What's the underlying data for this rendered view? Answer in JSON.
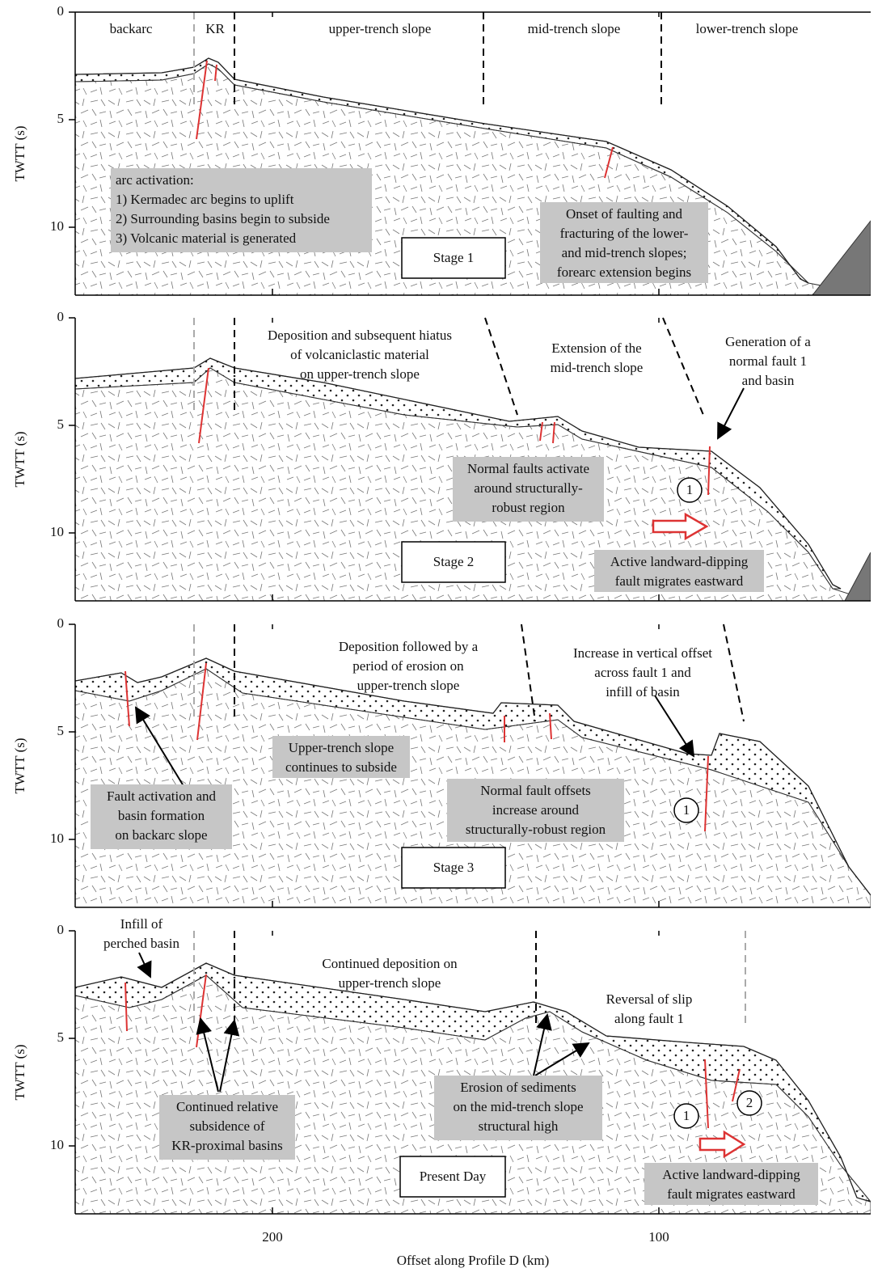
{
  "figure": {
    "y_axis_label": "TWTT (s)",
    "x_axis_label": "Offset along Profile D (km)",
    "x_ticks": [
      200,
      100
    ],
    "y_ticks": [
      0,
      5,
      10
    ],
    "panels": [
      {
        "zone_labels": [
          "backarc",
          "KR",
          "upper-trench slope",
          "mid-trench slope",
          "lower-trench slope"
        ],
        "stage": "Stage 1",
        "annotations": [
          {
            "lines": [
              "arc activation:",
              "1) Kermadec arc begins to uplift",
              "2) Surrounding basins begin to subside",
              "3) Volcanic material is generated"
            ]
          },
          {
            "lines": [
              "Onset of faulting and",
              "fracturing of the lower-",
              "and mid-trench slopes;",
              "forearc extension begins"
            ]
          }
        ],
        "markers": []
      },
      {
        "zone_labels": [],
        "stage": "Stage 2",
        "annotations": [
          {
            "lines": [
              "Deposition and subsequent hiatus",
              "of volcaniclastic material",
              "on upper-trench slope"
            ]
          },
          {
            "lines": [
              "Extension of the",
              "mid-trench slope"
            ]
          },
          {
            "lines": [
              "Generation of a",
              "normal fault 1",
              "and basin"
            ]
          },
          {
            "lines": [
              "Normal faults activate",
              "around structurally-",
              "robust region"
            ]
          },
          {
            "lines": [
              "Active landward-dipping",
              "fault migrates eastward"
            ]
          }
        ],
        "markers": [
          "1"
        ]
      },
      {
        "zone_labels": [],
        "stage": "Stage 3",
        "annotations": [
          {
            "lines": [
              "Deposition followed by a",
              "period of erosion on",
              "upper-trench slope"
            ]
          },
          {
            "lines": [
              "Increase in vertical offset",
              "across fault 1 and",
              "infill of basin"
            ]
          },
          {
            "lines": [
              "Upper-trench slope",
              "continues to subside"
            ]
          },
          {
            "lines": [
              "Fault activation and",
              "basin formation",
              "on backarc slope"
            ]
          },
          {
            "lines": [
              "Normal fault offsets",
              "increase around",
              "structurally-robust region"
            ]
          }
        ],
        "markers": [
          "1"
        ]
      },
      {
        "zone_labels": [],
        "stage": "Present Day",
        "annotations": [
          {
            "lines": [
              "Infill of",
              "perched basin"
            ]
          },
          {
            "lines": [
              "Continued deposition on",
              "upper-trench slope"
            ]
          },
          {
            "lines": [
              "Reversal of slip",
              "along fault 1"
            ]
          },
          {
            "lines": [
              "Continued relative",
              "subsidence of",
              "KR-proximal basins"
            ]
          },
          {
            "lines": [
              "Erosion of sediments",
              "on the mid-trench slope",
              "structural high"
            ]
          },
          {
            "lines": [
              "Active landward-dipping",
              "fault migrates eastward"
            ]
          }
        ],
        "markers": [
          "1",
          "2"
        ]
      }
    ]
  }
}
